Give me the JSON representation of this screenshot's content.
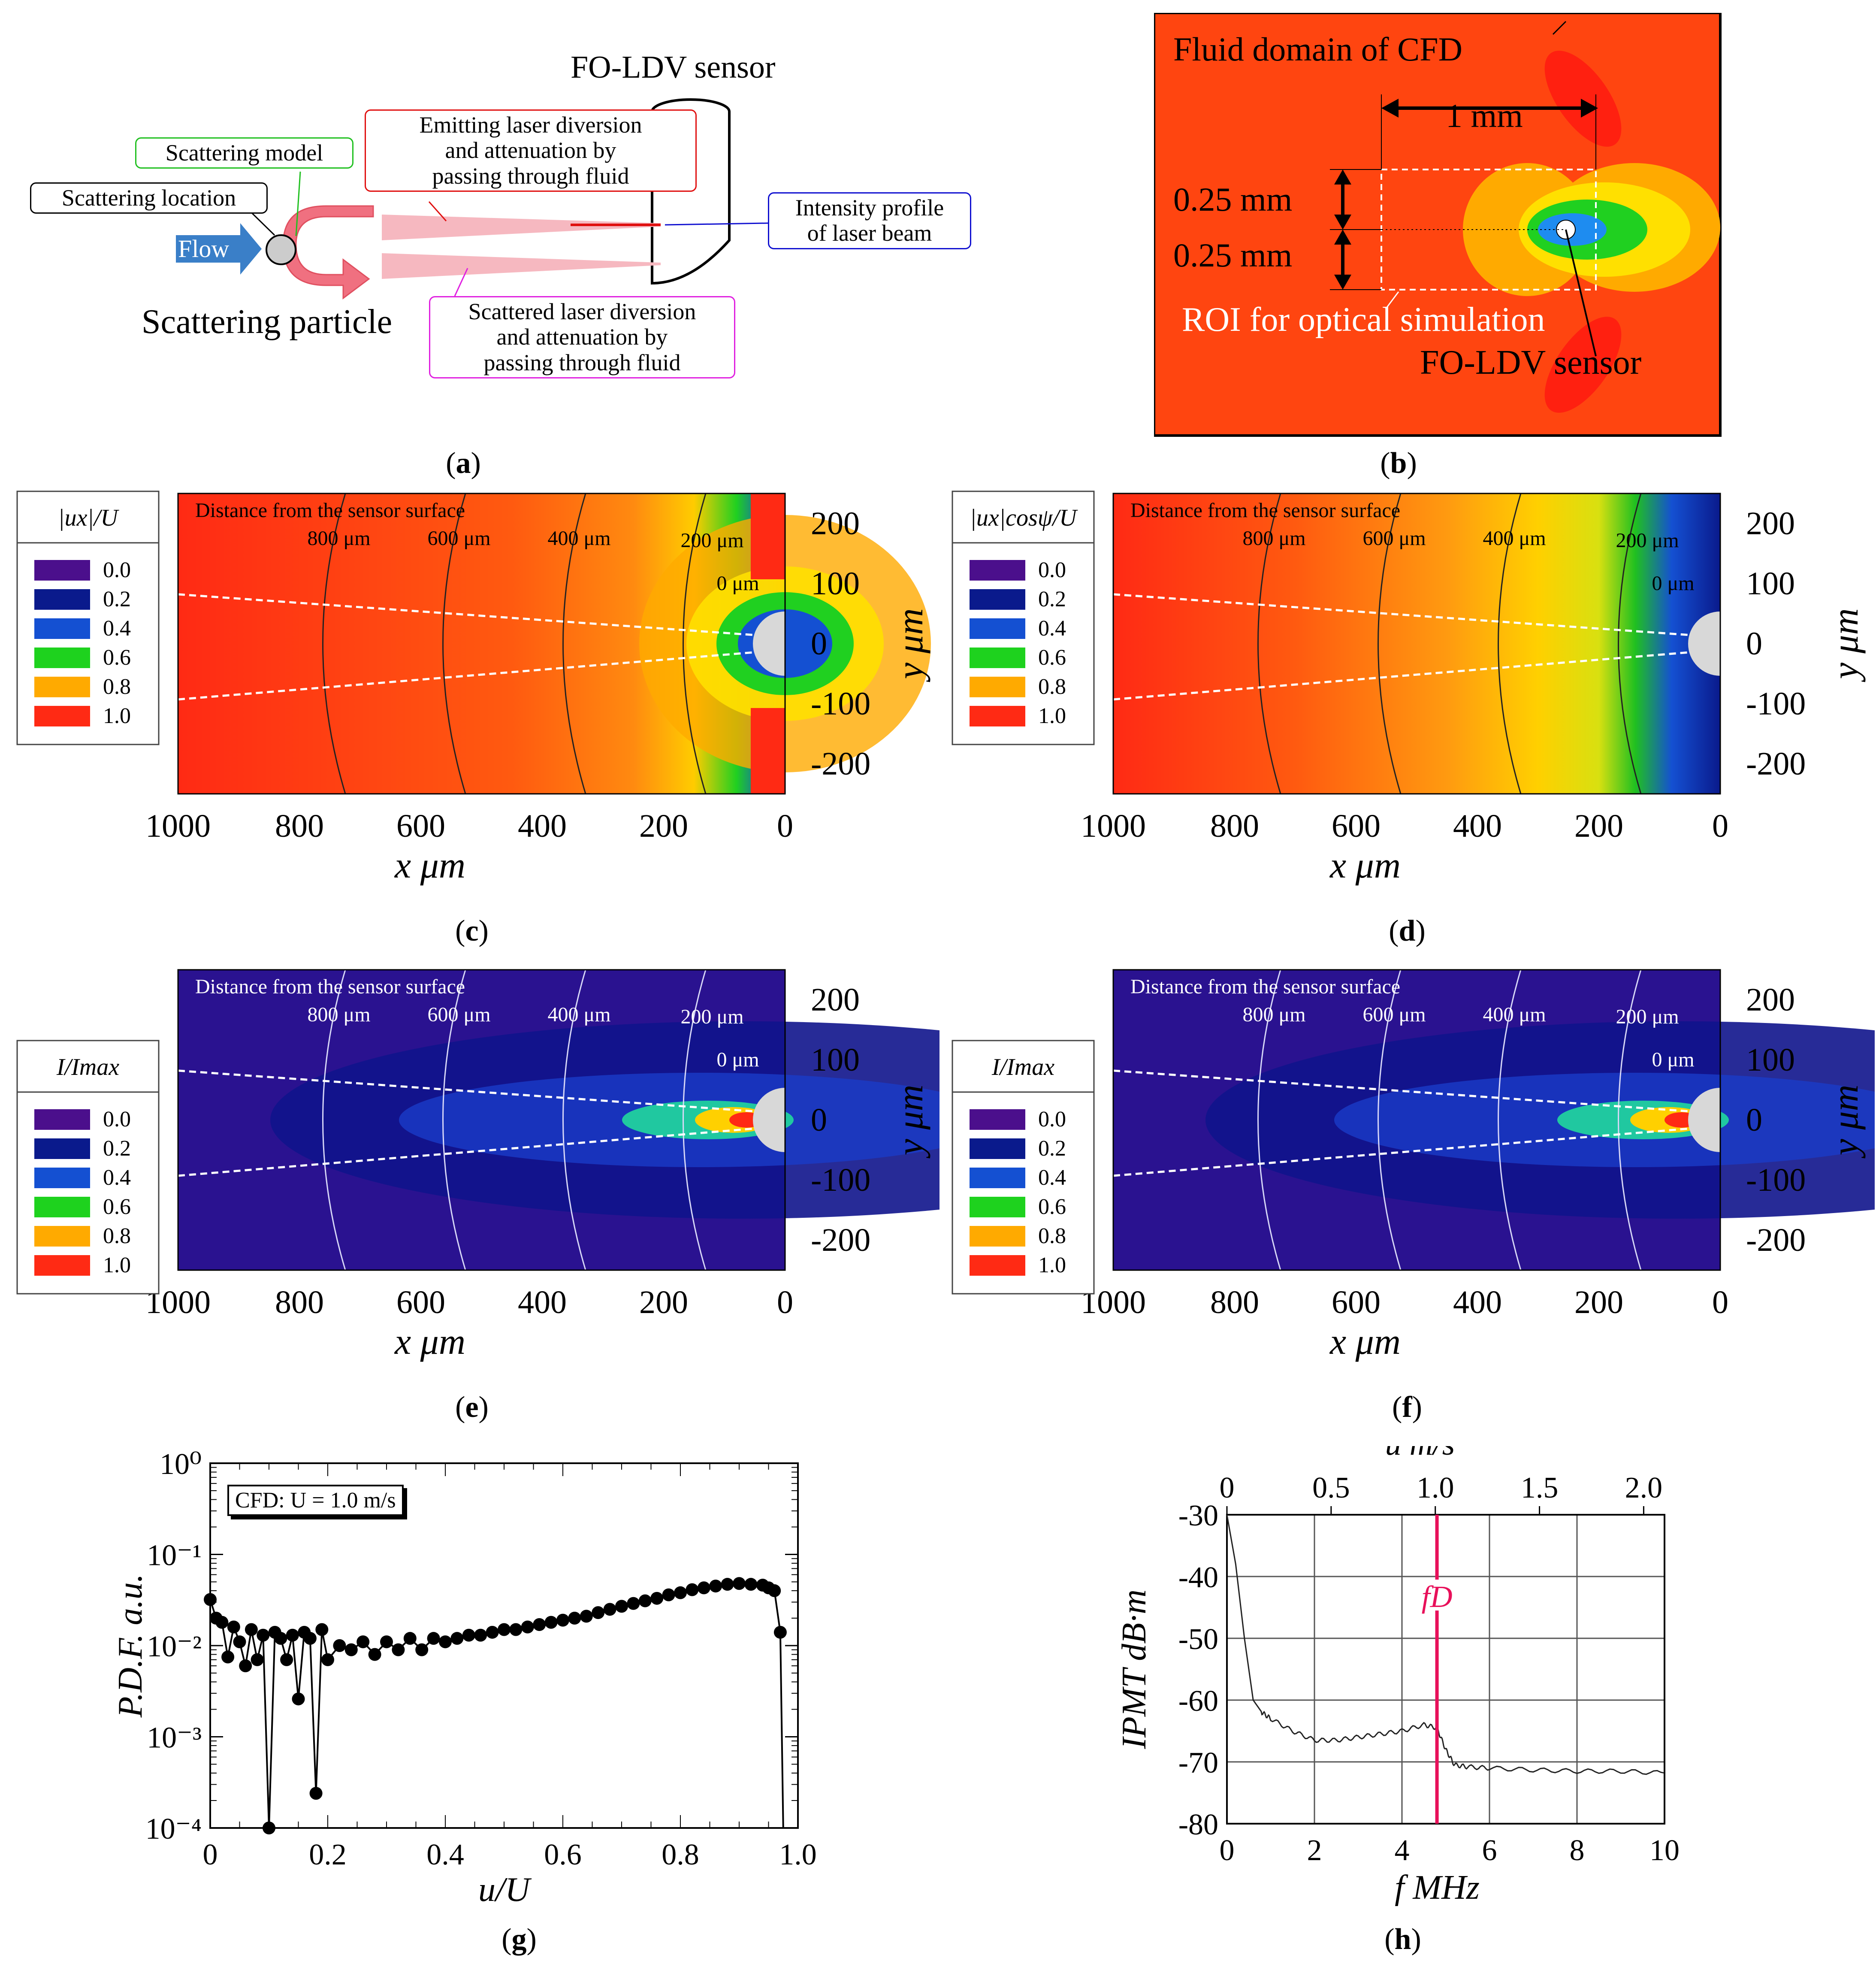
{
  "panel_a": {
    "caption": "a",
    "sensor_title": "FO-LDV sensor",
    "scattering_model": "Scattering model",
    "scattering_location": "Scattering location",
    "flow": "Flow",
    "scattering_particle": "Scattering particle",
    "emitting_box": [
      "Emitting laser diversion",
      "and attenuation by",
      "passing through fluid"
    ],
    "intensity_box": [
      "Intensity profile",
      "of laser beam"
    ],
    "scattered_box": [
      "Scattered laser diversion",
      "and attenuation by",
      "passing through fluid"
    ]
  },
  "panel_b": {
    "caption": "b",
    "fluid_domain": "Fluid domain of CFD",
    "width_label": "1 mm",
    "half_height_top": "0.25 mm",
    "half_height_bottom": "0.25 mm",
    "roi_label": "ROI for optical simulation",
    "sensor_label": "FO-LDV sensor"
  },
  "contour_common": {
    "distance_title": "Distance  from the sensor surface",
    "arc_labels": [
      "800 μm",
      "600 μm",
      "400 μm",
      "200 μm",
      "0 μm"
    ],
    "x_ticks": [
      "1000",
      "800",
      "600",
      "400",
      "200",
      "0"
    ],
    "y_ticks": [
      "200",
      "100",
      "0",
      "-100",
      "-200"
    ],
    "x_label": "x  μm",
    "y_label": "y  μm",
    "legend_values": [
      "0.0",
      "0.2",
      "0.4",
      "0.6",
      "0.8",
      "1.0"
    ],
    "legend_colors": [
      "#4b0f8c",
      "#0a1a8c",
      "#1450d2",
      "#1ed21e",
      "#ffaa00",
      "#ff2a14"
    ]
  },
  "panel_c": {
    "caption": "c",
    "legend_title": "|ux|/U"
  },
  "panel_d": {
    "caption": "d",
    "legend_title": "|ux|cosψ/U"
  },
  "panel_e": {
    "caption": "e",
    "legend_title": "I/Imax"
  },
  "panel_f": {
    "caption": "f",
    "legend_title": "I/Imax"
  },
  "panel_g": {
    "caption": "g",
    "annotation": "CFD: U = 1.0 m/s",
    "y_tick_labels": [
      "10⁰",
      "10⁻¹",
      "10⁻²",
      "10⁻³",
      "10⁻⁴"
    ],
    "x_tick_labels": [
      "0",
      "0.2",
      "0.4",
      "0.6",
      "0.8",
      "1.0"
    ],
    "x_label": "u/U",
    "y_label": "P.D.F.  a.u."
  },
  "panel_h": {
    "caption": "h",
    "top_axis_label": "u  m/s",
    "top_ticks": [
      "0",
      "0.5",
      "1.0",
      "1.5",
      "2.0"
    ],
    "bottom_ticks": [
      "0",
      "2",
      "4",
      "6",
      "8",
      "10"
    ],
    "y_ticks": [
      "-30",
      "-40",
      "-50",
      "-60",
      "-70",
      "-80"
    ],
    "x_label": "f  MHz",
    "y_label": "IPMT  dB·m",
    "marker_label": "fD",
    "marker_color": "#e8105a"
  },
  "chart_data": [
    {
      "type": "scatter",
      "title": "",
      "annotation": "CFD: U = 1.0 m/s",
      "xlabel": "u/U",
      "ylabel": "P.D.F.  a.u.",
      "yscale": "log",
      "xlim": [
        0,
        1.0
      ],
      "ylim": [
        0.0001,
        1
      ],
      "x": [
        0.0,
        0.01,
        0.02,
        0.03,
        0.04,
        0.05,
        0.06,
        0.07,
        0.08,
        0.09,
        0.1,
        0.11,
        0.12,
        0.13,
        0.14,
        0.15,
        0.16,
        0.17,
        0.18,
        0.19,
        0.2,
        0.22,
        0.24,
        0.26,
        0.28,
        0.3,
        0.32,
        0.34,
        0.36,
        0.38,
        0.4,
        0.42,
        0.44,
        0.46,
        0.48,
        0.5,
        0.52,
        0.54,
        0.56,
        0.58,
        0.6,
        0.62,
        0.64,
        0.66,
        0.68,
        0.7,
        0.72,
        0.74,
        0.76,
        0.78,
        0.8,
        0.82,
        0.84,
        0.86,
        0.88,
        0.9,
        0.92,
        0.94,
        0.95,
        0.96,
        0.97
      ],
      "y": [
        0.032,
        0.02,
        0.018,
        0.0075,
        0.016,
        0.011,
        0.006,
        0.015,
        0.007,
        0.013,
        0.0001,
        0.014,
        0.012,
        0.007,
        0.013,
        0.0026,
        0.014,
        0.012,
        0.00024,
        0.015,
        0.007,
        0.01,
        0.009,
        0.011,
        0.008,
        0.011,
        0.009,
        0.012,
        0.009,
        0.012,
        0.011,
        0.012,
        0.013,
        0.013,
        0.014,
        0.015,
        0.015,
        0.016,
        0.017,
        0.018,
        0.019,
        0.02,
        0.021,
        0.023,
        0.025,
        0.027,
        0.029,
        0.031,
        0.033,
        0.036,
        0.038,
        0.041,
        0.043,
        0.045,
        0.047,
        0.048,
        0.047,
        0.046,
        0.043,
        0.04,
        0.014
      ]
    },
    {
      "type": "line",
      "title": "",
      "xlabel": "f  MHz",
      "ylabel": "IPMT  dB·m",
      "secondary_xlabel": "u  m/s",
      "xlim": [
        0,
        10
      ],
      "ylim": [
        -80,
        -30
      ],
      "marker_x": 4.8,
      "marker_label": "fD",
      "x": [
        0,
        0.2,
        0.4,
        0.6,
        0.8,
        1.0,
        1.5,
        2.0,
        2.5,
        3.0,
        3.5,
        4.0,
        4.5,
        4.8,
        5.0,
        5.2,
        5.5,
        6.0,
        7.0,
        8.0,
        9.0,
        10.0
      ],
      "y": [
        -30,
        -38,
        -50,
        -60,
        -62,
        -63,
        -65,
        -66.5,
        -66.5,
        -66,
        -65.5,
        -65,
        -64,
        -64.5,
        -68,
        -70.5,
        -70.8,
        -71,
        -71.3,
        -71.5,
        -71.5,
        -71.8
      ]
    }
  ]
}
